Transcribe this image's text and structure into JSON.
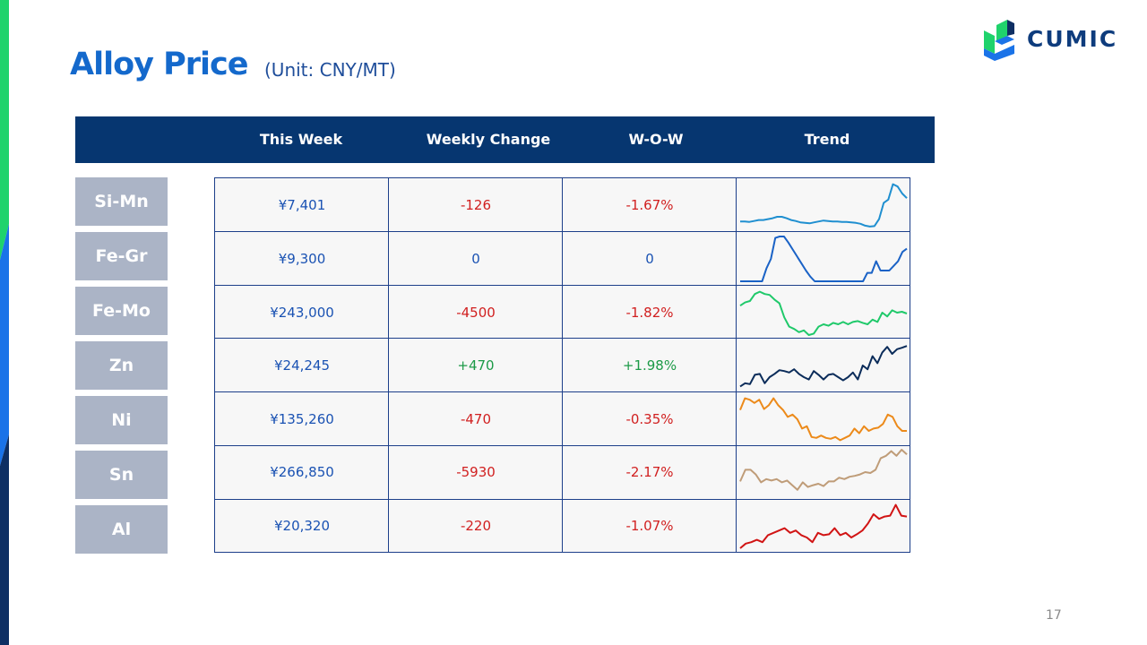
{
  "page": {
    "title": "Alloy Price",
    "unit": "(Unit: CNY/MT)",
    "logo_text": "CUMIC",
    "page_number": "17"
  },
  "header": [
    "",
    "This Week",
    "Weekly Change",
    "W-O-W",
    "Trend"
  ],
  "rows": [
    {
      "name": "Si-Mn",
      "price": "¥7,401",
      "change": "-126",
      "wow": "-1.67%",
      "direction": "neg",
      "color": "#1f8fd0",
      "trend": [
        0.15,
        0.15,
        0.14,
        0.16,
        0.18,
        0.18,
        0.2,
        0.22,
        0.25,
        0.25,
        0.22,
        0.18,
        0.16,
        0.13,
        0.12,
        0.11,
        0.13,
        0.15,
        0.17,
        0.16,
        0.15,
        0.15,
        0.14,
        0.14,
        0.13,
        0.12,
        0.1,
        0.06,
        0.04,
        0.05,
        0.2,
        0.55,
        0.62,
        0.95,
        0.9,
        0.75,
        0.65
      ]
    },
    {
      "name": "Fe-Gr",
      "price": "¥9,300",
      "change": "0",
      "wow": "0",
      "direction": "zero",
      "color": "#1a62c6",
      "trend": [
        0.02,
        0.02,
        0.02,
        0.02,
        0.02,
        0.02,
        0.3,
        0.5,
        0.95,
        0.98,
        0.98,
        0.85,
        0.7,
        0.55,
        0.4,
        0.25,
        0.12,
        0.02,
        0.02,
        0.02,
        0.02,
        0.02,
        0.02,
        0.02,
        0.02,
        0.02,
        0.02,
        0.02,
        0.02,
        0.2,
        0.2,
        0.45,
        0.25,
        0.25,
        0.25,
        0.35,
        0.45,
        0.65,
        0.72
      ]
    },
    {
      "name": "Fe-Mo",
      "price": "¥243,000",
      "change": "-4500",
      "wow": "-1.82%",
      "direction": "neg",
      "color": "#1fc96a",
      "trend": [
        0.65,
        0.72,
        0.75,
        0.9,
        0.95,
        0.9,
        0.88,
        0.78,
        0.7,
        0.4,
        0.2,
        0.15,
        0.08,
        0.12,
        0.02,
        0.05,
        0.2,
        0.25,
        0.22,
        0.28,
        0.25,
        0.3,
        0.25,
        0.3,
        0.32,
        0.28,
        0.25,
        0.35,
        0.3,
        0.5,
        0.42,
        0.55,
        0.5,
        0.52,
        0.48
      ]
    },
    {
      "name": "Zn",
      "price": "¥24,245",
      "change": "+470",
      "wow": "+1.98%",
      "direction": "pos",
      "color": "#0b2c5a",
      "trend": [
        0.05,
        0.12,
        0.1,
        0.3,
        0.32,
        0.12,
        0.25,
        0.32,
        0.4,
        0.38,
        0.35,
        0.42,
        0.32,
        0.25,
        0.2,
        0.38,
        0.3,
        0.2,
        0.3,
        0.32,
        0.25,
        0.18,
        0.25,
        0.35,
        0.2,
        0.5,
        0.42,
        0.7,
        0.55,
        0.78,
        0.9,
        0.75,
        0.85,
        0.88,
        0.92
      ]
    },
    {
      "name": "Ni",
      "price": "¥135,260",
      "change": "-470",
      "wow": "-0.35%",
      "direction": "neg",
      "color": "#ec8a1a",
      "trend": [
        0.7,
        0.95,
        0.92,
        0.85,
        0.92,
        0.72,
        0.8,
        0.95,
        0.8,
        0.7,
        0.55,
        0.6,
        0.5,
        0.3,
        0.35,
        0.12,
        0.1,
        0.15,
        0.1,
        0.08,
        0.12,
        0.05,
        0.1,
        0.15,
        0.3,
        0.2,
        0.35,
        0.25,
        0.3,
        0.32,
        0.4,
        0.6,
        0.55,
        0.35,
        0.25,
        0.25
      ]
    },
    {
      "name": "Sn",
      "price": "¥266,850",
      "change": "-5930",
      "wow": "-2.17%",
      "direction": "neg",
      "color": "#bf9c78",
      "trend": [
        0.3,
        0.55,
        0.55,
        0.45,
        0.28,
        0.35,
        0.32,
        0.35,
        0.28,
        0.32,
        0.22,
        0.12,
        0.28,
        0.18,
        0.22,
        0.25,
        0.2,
        0.3,
        0.3,
        0.38,
        0.35,
        0.4,
        0.42,
        0.45,
        0.5,
        0.48,
        0.55,
        0.8,
        0.85,
        0.95,
        0.85,
        0.98,
        0.88
      ]
    },
    {
      "name": "Al",
      "price": "¥20,320",
      "change": "-220",
      "wow": "-1.07%",
      "direction": "neg",
      "color": "#d11414",
      "trend": [
        0.02,
        0.12,
        0.15,
        0.2,
        0.15,
        0.3,
        0.35,
        0.4,
        0.45,
        0.35,
        0.4,
        0.3,
        0.25,
        0.15,
        0.35,
        0.3,
        0.32,
        0.45,
        0.3,
        0.35,
        0.25,
        0.32,
        0.4,
        0.55,
        0.75,
        0.65,
        0.7,
        0.72,
        0.95,
        0.72,
        0.7
      ]
    }
  ],
  "colors": {
    "header_bg": "#063670",
    "label_bg": "#abb4c6",
    "title": "#1469cc",
    "negative": "#d12020",
    "positive": "#1c9a47"
  }
}
